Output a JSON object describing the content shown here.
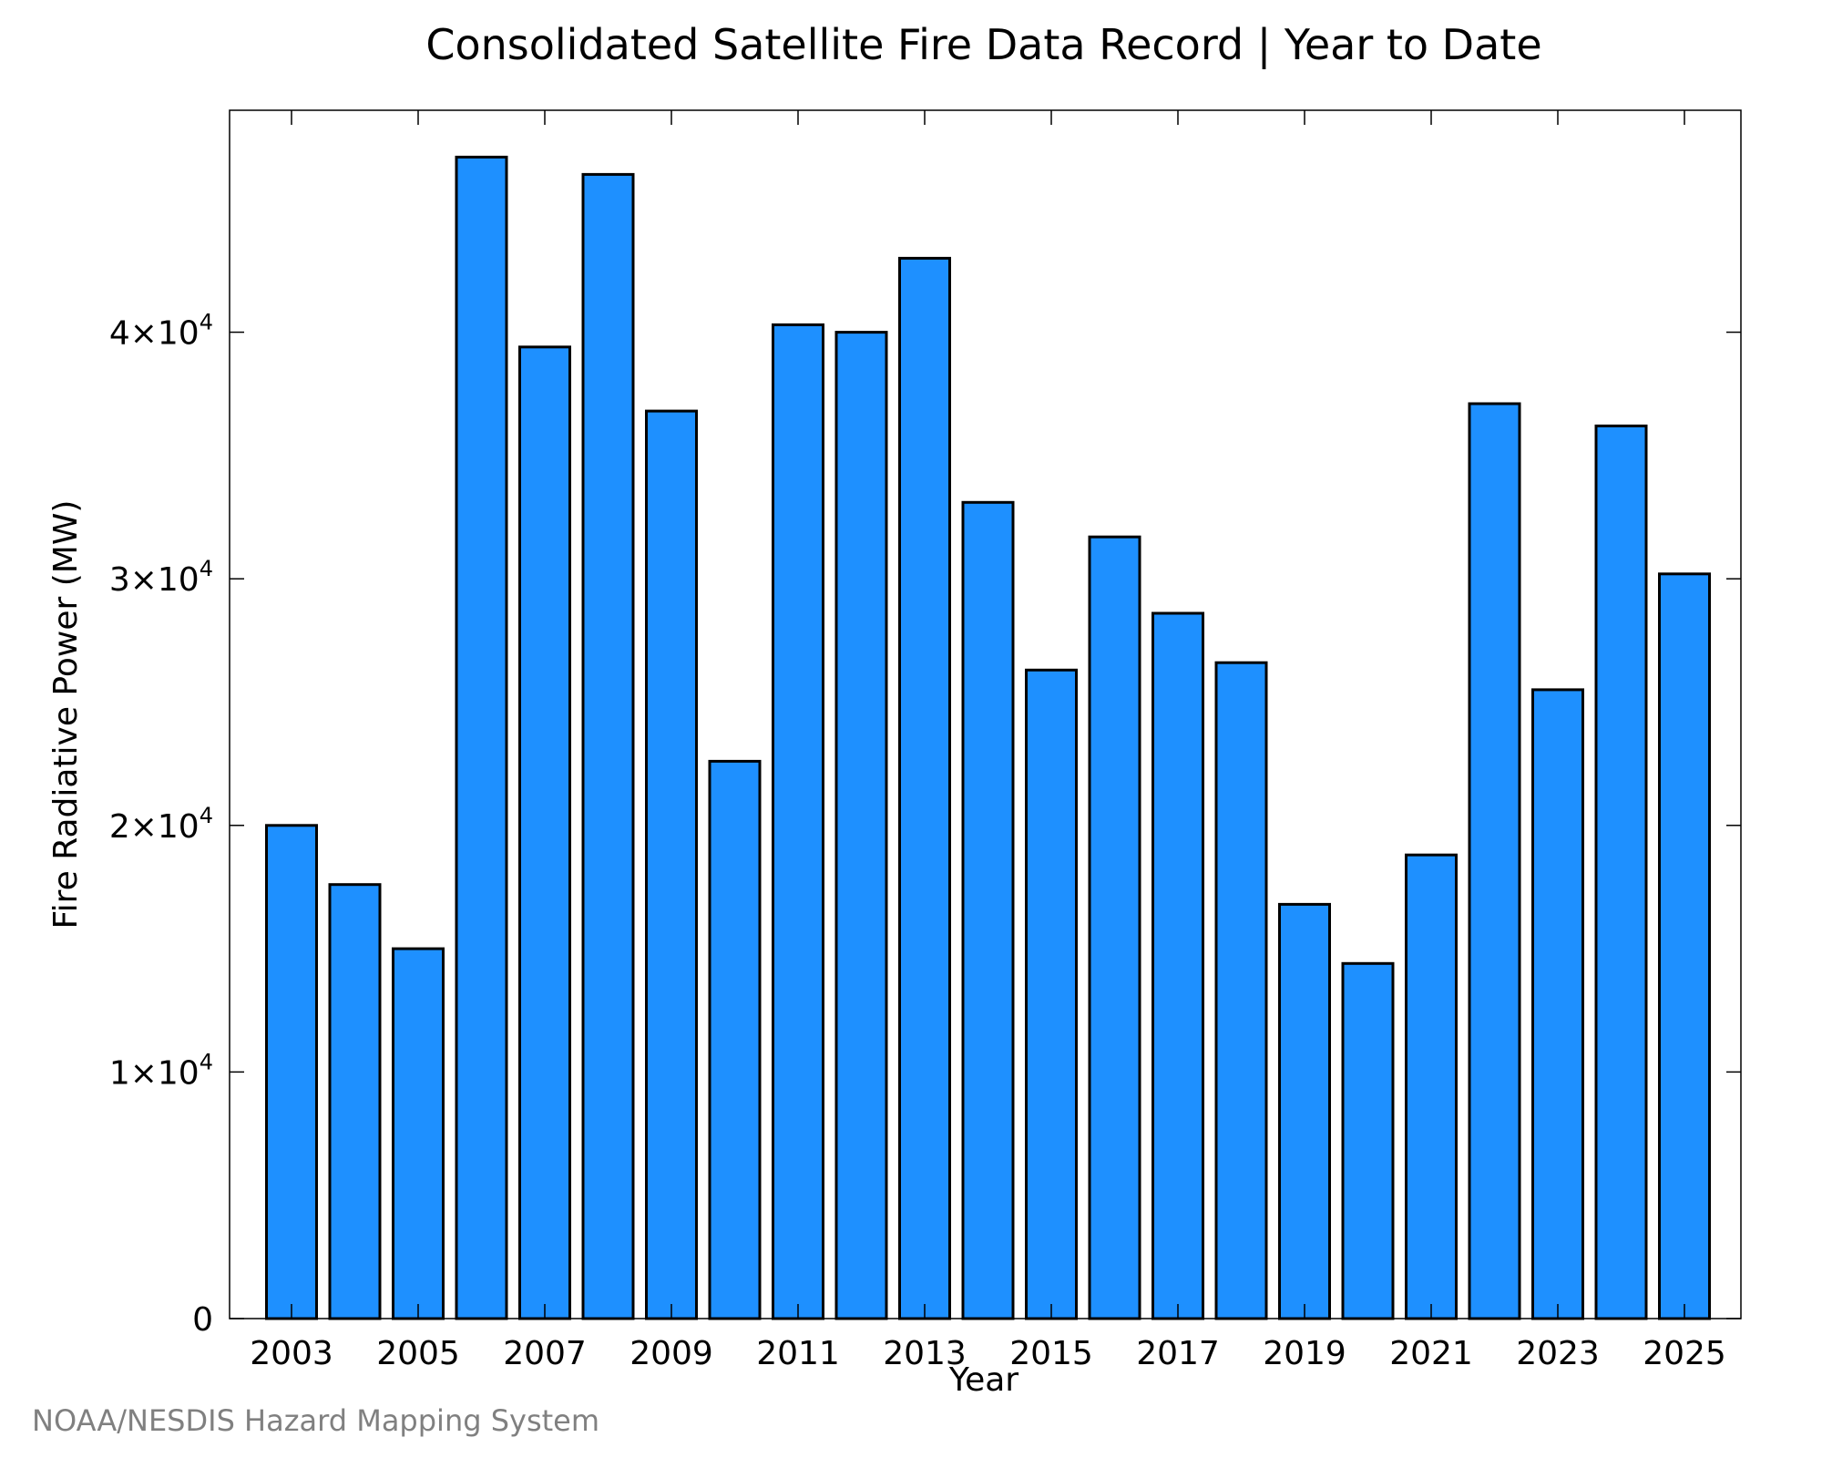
{
  "chart_data": {
    "type": "bar",
    "title": "Consolidated Satellite Fire Data Record | Year to Date",
    "xlabel": "Year",
    "ylabel": "Fire Radiative Power (MW)",
    "categories": [
      "2003",
      "2004",
      "2005",
      "2006",
      "2007",
      "2008",
      "2009",
      "2010",
      "2011",
      "2012",
      "2013",
      "2014",
      "2015",
      "2016",
      "2017",
      "2018",
      "2019",
      "2020",
      "2021",
      "2022",
      "2023",
      "2024",
      "2025"
    ],
    "values": [
      20000,
      17600,
      15000,
      47100,
      39400,
      46400,
      36800,
      22600,
      40300,
      40000,
      43000,
      33100,
      26300,
      31700,
      28600,
      26600,
      16800,
      14400,
      18800,
      37100,
      25500,
      36200,
      30200
    ],
    "ylim": [
      0,
      49000
    ],
    "yticks": [
      {
        "value": 0,
        "label": "0",
        "mant": "",
        "exp": ""
      },
      {
        "value": 10000,
        "label": "",
        "mant": "1×10",
        "exp": "4"
      },
      {
        "value": 20000,
        "label": "",
        "mant": "2×10",
        "exp": "4"
      },
      {
        "value": 30000,
        "label": "",
        "mant": "3×10",
        "exp": "4"
      },
      {
        "value": 40000,
        "label": "",
        "mant": "4×10",
        "exp": "4"
      }
    ],
    "xtick_labels": [
      "2003",
      "2005",
      "2007",
      "2009",
      "2011",
      "2013",
      "2015",
      "2017",
      "2019",
      "2021",
      "2023",
      "2025"
    ],
    "grid": false,
    "bar_color": "#1e90ff",
    "bar_edge_color": "#000000"
  },
  "credit": "NOAA/NESDIS Hazard Mapping System",
  "credit_color": "#808080"
}
